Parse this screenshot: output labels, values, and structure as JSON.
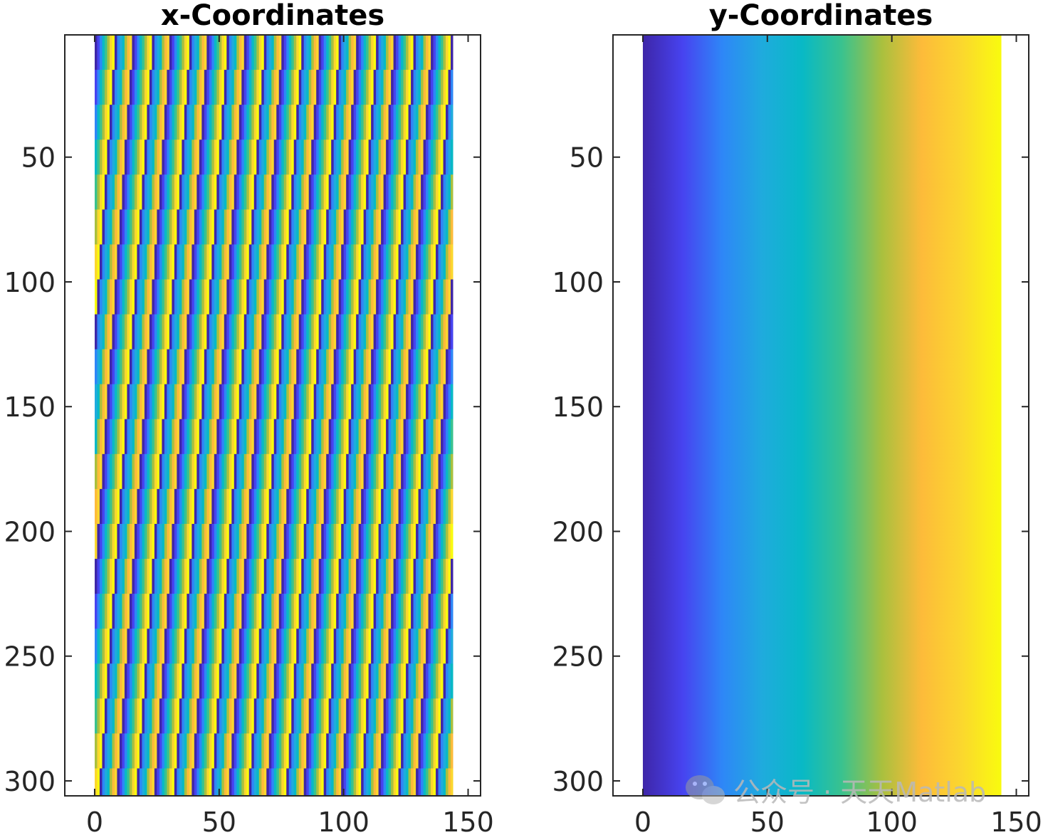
{
  "chart_data": [
    {
      "type": "heatmap",
      "title": "x-Coordinates",
      "colormap": "parula",
      "pattern": "sawtooth",
      "pattern_period_x": 7.5,
      "pattern_row_shift": 1,
      "pattern_row_step": 14,
      "xlim": [
        -12,
        155
      ],
      "ylim": [
        1,
        306
      ],
      "data_extent_x": [
        0,
        144
      ],
      "xticks": [
        0,
        50,
        100,
        150
      ],
      "yticks": [
        50,
        100,
        150,
        200,
        250,
        300
      ],
      "xlabel": "",
      "ylabel": ""
    },
    {
      "type": "heatmap",
      "title": "y-Coordinates",
      "colormap": "parula",
      "pattern": "gradient-x",
      "xlim": [
        -12,
        155
      ],
      "ylim": [
        1,
        306
      ],
      "data_extent_x": [
        0,
        144
      ],
      "xticks": [
        0,
        50,
        100,
        150
      ],
      "yticks": [
        50,
        100,
        150,
        200,
        250,
        300
      ],
      "xlabel": "",
      "ylabel": ""
    }
  ],
  "colors": {
    "parula": [
      "#3e26a8",
      "#4743f0",
      "#2e87f7",
      "#1fabdd",
      "#08b9c6",
      "#3ac28e",
      "#a9c03e",
      "#fdbb3a",
      "#fbd72e",
      "#f9fb0e"
    ],
    "axis": "#262626"
  },
  "watermark": {
    "icon": "wechat-icon",
    "text": "公众号 · 天天Matlab"
  }
}
